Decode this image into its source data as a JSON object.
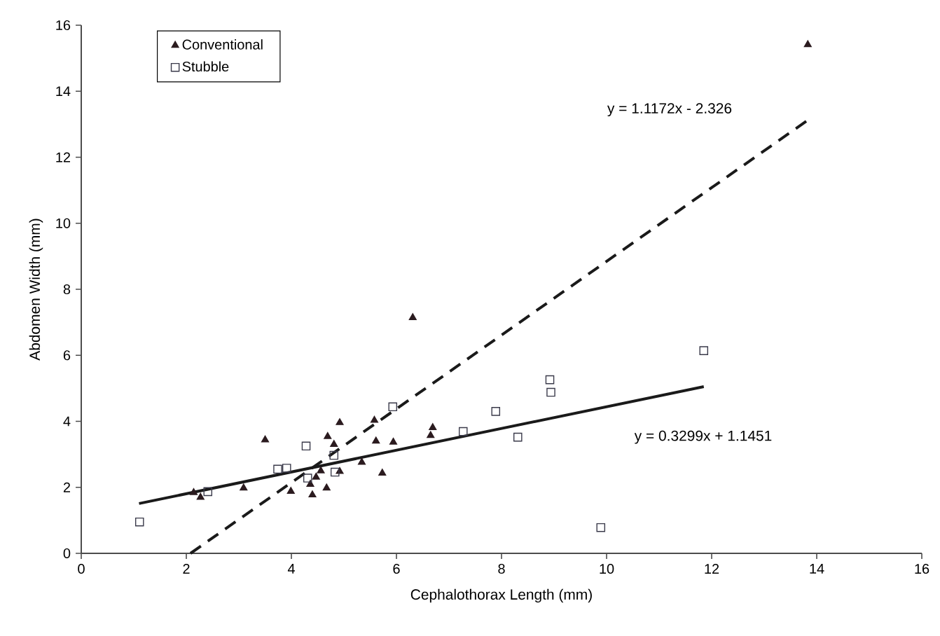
{
  "chart_data": {
    "type": "scatter",
    "xlabel": "Cephalothorax Length (mm)",
    "ylabel": "Abdomen Width (mm)",
    "xlim": [
      0,
      16
    ],
    "ylim": [
      0,
      16
    ],
    "xticks": [
      0,
      2,
      4,
      6,
      8,
      10,
      12,
      14,
      16
    ],
    "yticks": [
      0,
      2,
      4,
      6,
      8,
      10,
      12,
      14,
      16
    ],
    "grid": false,
    "legend": "top left",
    "series": [
      {
        "name": "Conventional",
        "marker": "triangle",
        "color": "#2b1b1f",
        "x": [
          3.5,
          4.92,
          4.69,
          4.81,
          2.14,
          2.27,
          3.09,
          3.99,
          4.4,
          4.67,
          4.36,
          4.47,
          4.56,
          4.92,
          5.34,
          6.31,
          5.58,
          5.61,
          5.94,
          6.69,
          6.65,
          5.73,
          13.83
        ],
        "values": [
          3.44,
          3.96,
          3.54,
          3.3,
          1.84,
          1.7,
          1.98,
          1.88,
          1.77,
          1.98,
          2.09,
          2.31,
          2.5,
          2.48,
          2.76,
          7.14,
          4.03,
          3.4,
          3.37,
          3.81,
          3.57,
          2.43,
          15.41
        ]
      },
      {
        "name": "Stubble",
        "marker": "square",
        "color": "#3a3a4a",
        "x": [
          1.11,
          2.41,
          3.74,
          3.91,
          4.28,
          4.31,
          4.81,
          4.83,
          5.93,
          7.27,
          7.89,
          8.31,
          8.92,
          8.94,
          9.89,
          11.85
        ],
        "values": [
          0.95,
          1.87,
          2.55,
          2.58,
          3.25,
          2.28,
          2.97,
          2.46,
          4.44,
          3.69,
          4.3,
          3.52,
          5.26,
          4.88,
          0.78,
          6.14
        ]
      },
      {
        "type": "line",
        "line_style": "dashed",
        "marker": "none",
        "color": "#1a1a1a",
        "x": [
          2.08,
          13.8
        ],
        "values": [
          0,
          13.09
        ]
      },
      {
        "type": "line",
        "line_style": "solid",
        "marker": "none",
        "color": "#1a1a1a",
        "x": [
          1.1,
          11.85
        ],
        "values": [
          1.51,
          5.05
        ]
      }
    ],
    "annotations": [
      "y = 1.1172x - 2.326",
      "y = 0.3299x + 1.1451"
    ]
  }
}
